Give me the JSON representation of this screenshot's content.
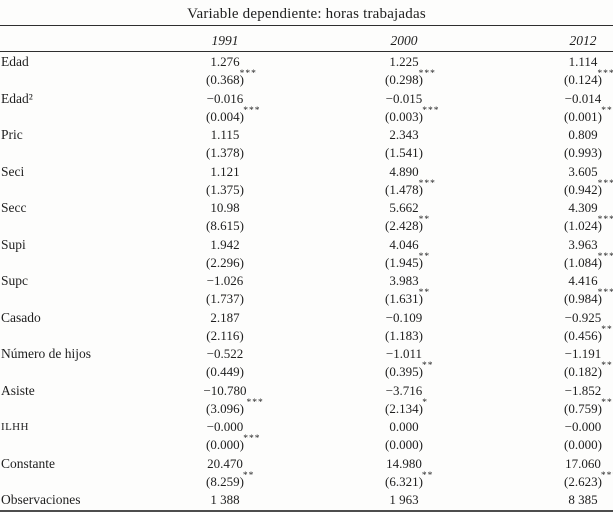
{
  "title": "Variable dependiente: horas trabajadas",
  "columns": [
    "1991",
    "2000",
    "2012"
  ],
  "rows": [
    {
      "label": "Edad",
      "cells": [
        {
          "coef": "1.276",
          "stars": "***",
          "se": "(0.368)"
        },
        {
          "coef": "1.225",
          "stars": "***",
          "se": "(0.298)"
        },
        {
          "coef": "1.114",
          "stars": "***",
          "se": "(0.124)"
        }
      ]
    },
    {
      "label": "Edad²",
      "cells": [
        {
          "coef": "−0.016",
          "stars": "***",
          "se": "(0.004)"
        },
        {
          "coef": "−0.015",
          "stars": "***",
          "se": "(0.003)"
        },
        {
          "coef": "−0.014",
          "stars": "***",
          "se": "(0.001)"
        }
      ]
    },
    {
      "label": "Pric",
      "cells": [
        {
          "coef": "1.115",
          "stars": "",
          "se": "(1.378)"
        },
        {
          "coef": "2.343",
          "stars": "",
          "se": "(1.541)"
        },
        {
          "coef": "0.809",
          "stars": "",
          "se": "(0.993)"
        }
      ]
    },
    {
      "label": "Seci",
      "cells": [
        {
          "coef": "1.121",
          "stars": "",
          "se": "(1.375)"
        },
        {
          "coef": "4.890",
          "stars": "***",
          "se": "(1.478)"
        },
        {
          "coef": "3.605",
          "stars": "***",
          "se": "(0.942)"
        }
      ]
    },
    {
      "label": "Secc",
      "cells": [
        {
          "coef": "10.98",
          "stars": "",
          "se": "(8.615)"
        },
        {
          "coef": "5.662",
          "stars": "**",
          "se": "(2.428)"
        },
        {
          "coef": "4.309",
          "stars": "***",
          "se": "(1.024)"
        }
      ]
    },
    {
      "label": "Supi",
      "cells": [
        {
          "coef": "1.942",
          "stars": "",
          "se": "(2.296)"
        },
        {
          "coef": "4.046",
          "stars": "**",
          "se": "(1.945)"
        },
        {
          "coef": "3.963",
          "stars": "***",
          "se": "(1.084)"
        }
      ]
    },
    {
      "label": "Supc",
      "cells": [
        {
          "coef": "−1.026",
          "stars": "",
          "se": "(1.737)"
        },
        {
          "coef": "3.983",
          "stars": "**",
          "se": "(1.631)"
        },
        {
          "coef": "4.416",
          "stars": "***",
          "se": "(0.984)"
        }
      ]
    },
    {
      "label": "Casado",
      "cells": [
        {
          "coef": "2.187",
          "stars": "",
          "se": "(2.116)"
        },
        {
          "coef": "−0.109",
          "stars": "",
          "se": "(1.183)"
        },
        {
          "coef": "−0.925",
          "stars": "**",
          "se": "(0.456)"
        }
      ]
    },
    {
      "label": "Número de hijos",
      "cells": [
        {
          "coef": "−0.522",
          "stars": "",
          "se": "(0.449)"
        },
        {
          "coef": "−1.011",
          "stars": "**",
          "se": "(0.395)"
        },
        {
          "coef": "−1.191",
          "stars": "***",
          "se": "(0.182)"
        }
      ]
    },
    {
      "label": "Asiste",
      "cells": [
        {
          "coef": "−10.780",
          "stars": "***",
          "se": "(3.096)"
        },
        {
          "coef": "−3.716",
          "stars": "*",
          "se": "(2.134)"
        },
        {
          "coef": "−1.852",
          "stars": "**",
          "se": "(0.759)"
        }
      ]
    },
    {
      "label": "ILHH",
      "cells": [
        {
          "coef": "−0.000",
          "stars": "***",
          "se": "(0.000)"
        },
        {
          "coef": "0.000",
          "stars": "",
          "se": "(0.000)"
        },
        {
          "coef": "−0.000",
          "stars": "",
          "se": "(0.000)"
        }
      ]
    },
    {
      "label": "Constante",
      "cells": [
        {
          "coef": "20.470",
          "stars": "**",
          "se": "(8.259)"
        },
        {
          "coef": "14.980",
          "stars": "**",
          "se": "(6.321)"
        },
        {
          "coef": "17.060",
          "stars": "***",
          "se": "(2.623)"
        }
      ]
    }
  ],
  "footer": {
    "label": "Observaciones",
    "values": [
      "1 388",
      "1 963",
      "8 385"
    ]
  }
}
